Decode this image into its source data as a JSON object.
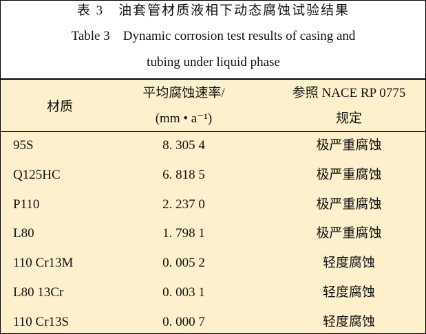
{
  "title": {
    "cn": "表 3　油套管材质液相下动态腐蚀试验结果",
    "en_lines": [
      "Table 3　Dynamic corrosion test results of casing and",
      "tubing under liquid phase"
    ]
  },
  "table": {
    "header": {
      "material": "材质",
      "rate_lines": [
        "平均腐蚀速率/",
        "(mm • a⁻¹)"
      ],
      "standard_lines": [
        "参照 NACE RP 0775",
        "规定"
      ]
    },
    "rows": [
      [
        "95S",
        "8. 305 4",
        "极严重腐蚀"
      ],
      [
        "Q125HC",
        "6. 818 5",
        "极严重腐蚀"
      ],
      [
        "P110",
        "2. 237 0",
        "极严重腐蚀"
      ],
      [
        "L80",
        "1. 798 1",
        "极严重腐蚀"
      ],
      [
        "110 Cr13M",
        "0. 005 2",
        "轻度腐蚀"
      ],
      [
        "L80 13Cr",
        "0. 003 1",
        "轻度腐蚀"
      ],
      [
        "110 Cr13S",
        "0. 000 7",
        "轻度腐蚀"
      ]
    ]
  }
}
